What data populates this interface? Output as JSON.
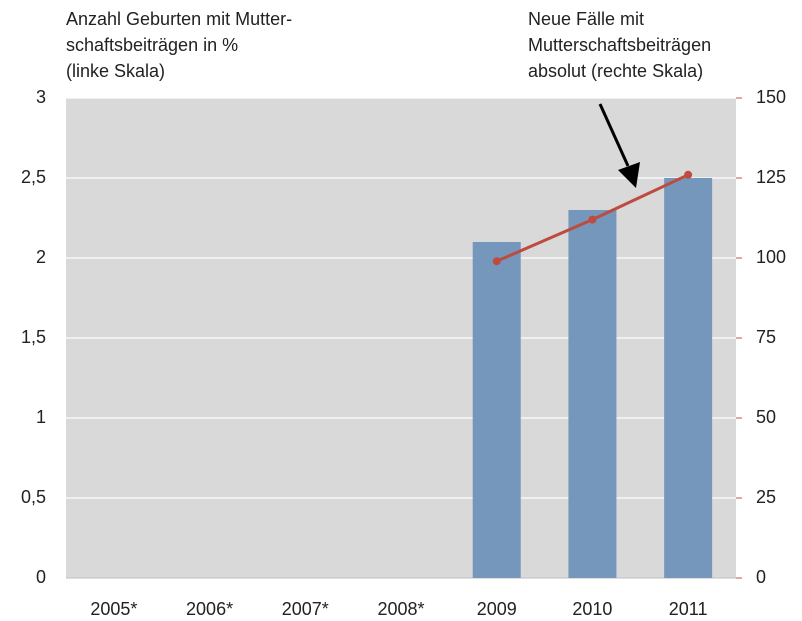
{
  "chart_data": {
    "type": "bar",
    "annotations": [
      [
        "Anzahl Geburten mit Mutter-",
        "schaftsbeiträgen in %",
        "(linke Skala)"
      ],
      [
        "Neue Fälle mit",
        "Mutterschaftsbeiträgen",
        "absolut (rechte Skala)"
      ]
    ],
    "categories": [
      "2005*",
      "2006*",
      "2007*",
      "2008*",
      "2009",
      "2010",
      "2011"
    ],
    "series": [
      {
        "type": "bar",
        "color": "#7597bb",
        "values": [
          null,
          null,
          null,
          null,
          2.1,
          2.3,
          2.5
        ]
      },
      {
        "type": "line",
        "axis": "y2",
        "color": "#be4b3f",
        "values": [
          null,
          null,
          null,
          null,
          99,
          112,
          126
        ]
      }
    ],
    "ylim": [
      0,
      3
    ],
    "yticks": [
      0,
      {
        "value": 0.5,
        "label": "0,5"
      },
      1,
      {
        "value": 1.5,
        "label": "1,5"
      },
      2,
      {
        "value": 2.5,
        "label": "2,5"
      },
      3
    ],
    "y2lim": [
      0,
      150
    ],
    "y2ticks": [
      0,
      25,
      50,
      75,
      100,
      125,
      150
    ],
    "grid": true,
    "background": "#d9d9d9",
    "ytick_color": "#8aa9c9",
    "y2tick_color": "#c0504d"
  }
}
